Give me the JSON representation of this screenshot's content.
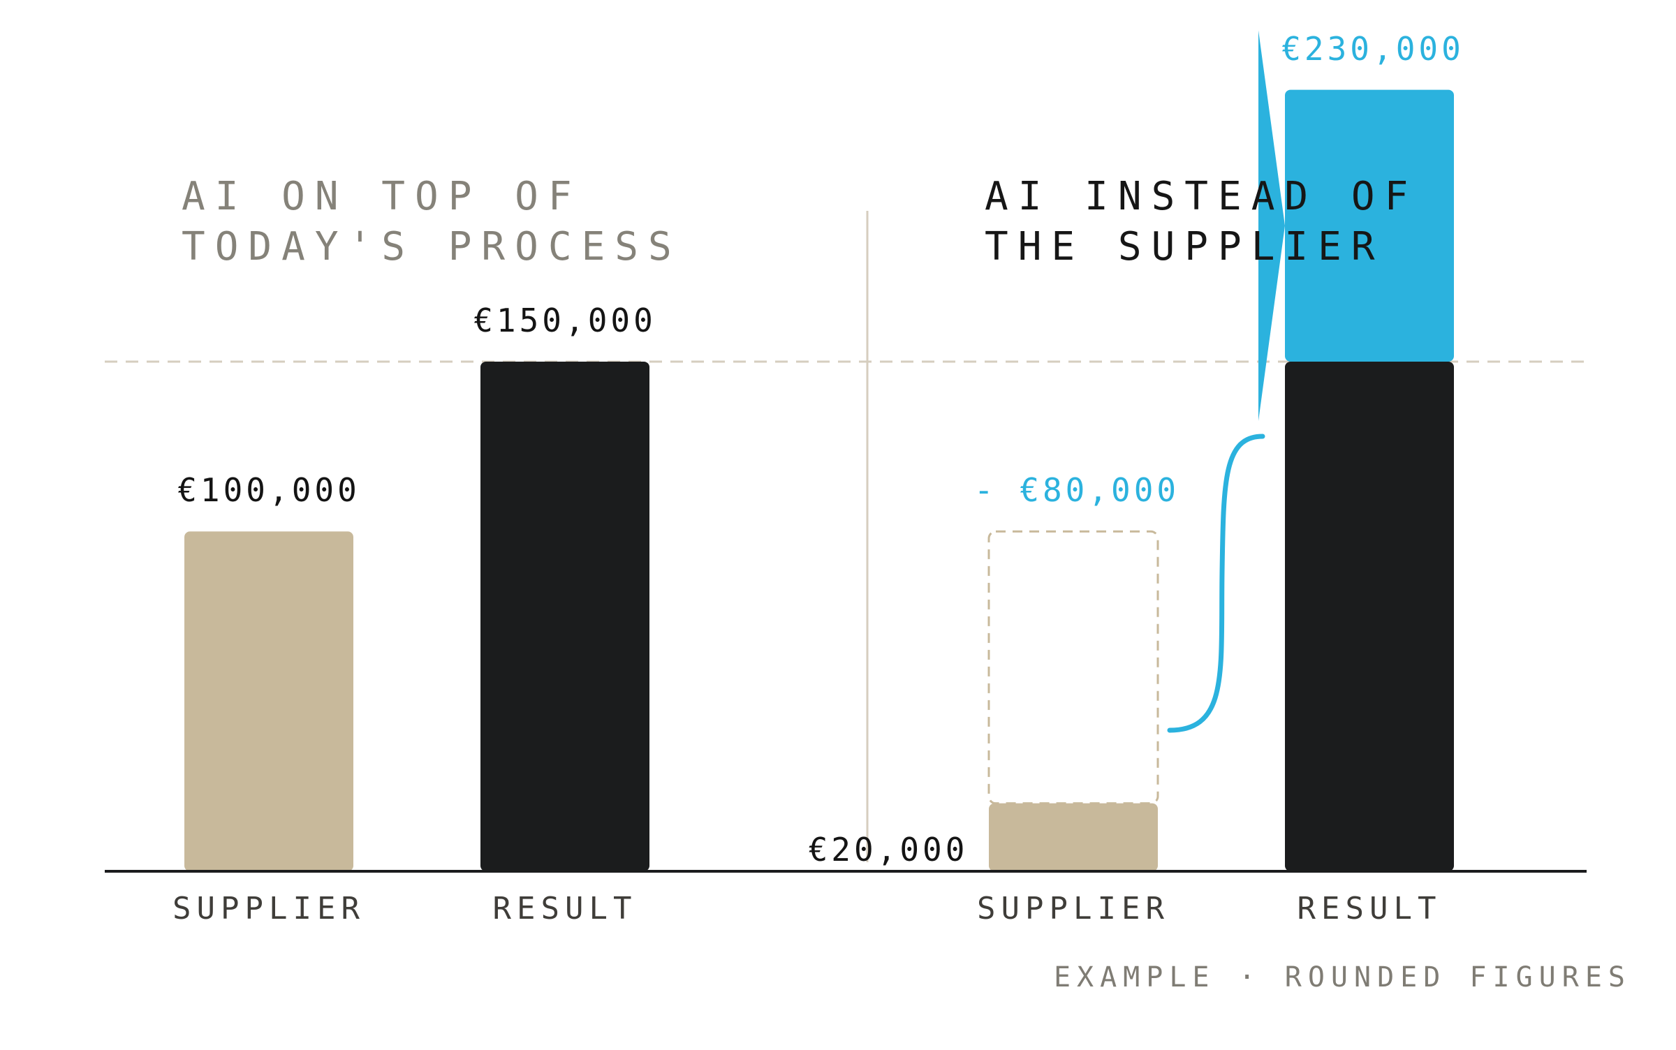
{
  "colors": {
    "supplier": "#c8b99b",
    "result": "#1b1c1d",
    "gain": "#2bb2de",
    "reference": "#d6cebf",
    "baseline": "#1b1c1d",
    "title_muted": "#858279",
    "title_dark": "#161616"
  },
  "chart_data": [
    {
      "type": "bar",
      "title": "AI ON TOP OF\nTODAY'S PROCESS",
      "categories": [
        "SUPPLIER",
        "RESULT"
      ],
      "values": [
        100000,
        150000
      ],
      "value_labels": [
        "€100,000",
        "€150,000"
      ],
      "ylim": [
        0,
        230000
      ],
      "reference_line": 150000
    },
    {
      "type": "bar",
      "title": "AI INSTEAD OF\nTHE SUPPLIER",
      "categories": [
        "SUPPLIER",
        "RESULT"
      ],
      "series": [
        {
          "values": [
            20000,
            150000
          ]
        },
        {
          "values": [
            80000,
            80000
          ]
        }
      ],
      "value_labels": {
        "supplier": "€20,000",
        "removed": "- €80,000",
        "result": "€230,000"
      },
      "ylim": [
        0,
        230000
      ],
      "reference_line": 150000
    }
  ],
  "footnote": "EXAMPLE · ROUNDED FIGURES"
}
